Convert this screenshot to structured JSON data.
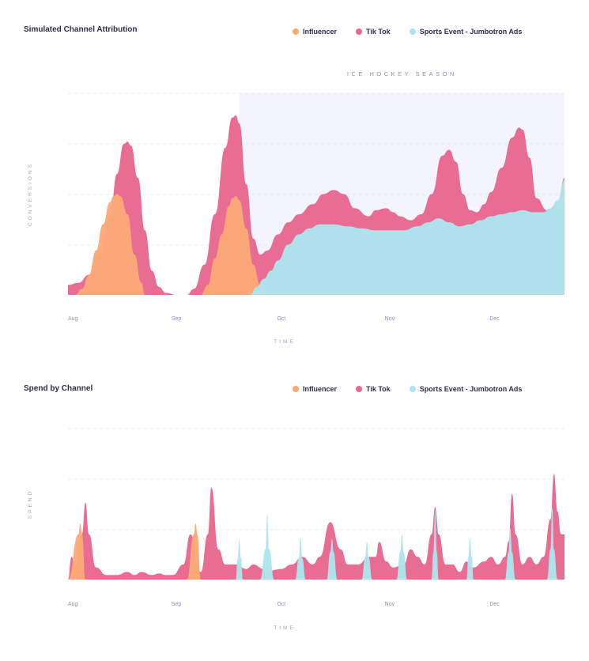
{
  "colors": {
    "influencer": "#fba976",
    "tiktok": "#e8688f",
    "jumbotron": "#ace5ef",
    "season_band": "#f3f4fd",
    "grid": "#e4e6f0"
  },
  "legend": [
    {
      "key": "influencer",
      "label": "Influencer"
    },
    {
      "key": "tiktok",
      "label": "Tik Tok"
    },
    {
      "key": "jumbotron",
      "label": "Sports Event - Jumbotron Ads"
    }
  ],
  "chart_data": [
    {
      "id": "attribution",
      "type": "area",
      "title": "Simulated Channel Attribution",
      "xlabel": "TIME",
      "ylabel": "CONVERSIONS",
      "x_ticks": [
        {
          "label": "Aug",
          "day": 0
        },
        {
          "label": "Sep",
          "day": 31
        },
        {
          "label": "Oct",
          "day": 61
        },
        {
          "label": "Nov",
          "day": 92
        },
        {
          "label": "Dec",
          "day": 122
        }
      ],
      "x_range_days": [
        0,
        142
      ],
      "ylim": [
        0,
        100
      ],
      "grid": true,
      "legend_position": "top-right",
      "annotation": {
        "label": "ICE HOCKEY SEASON",
        "from_day": 49,
        "to_day": 142
      },
      "series": [
        {
          "key": "tiktok",
          "name": "Tik Tok",
          "points": [
            [
              0,
              5
            ],
            [
              3,
              6
            ],
            [
              6,
              10
            ],
            [
              9,
              20
            ],
            [
              12,
              38
            ],
            [
              14,
              60
            ],
            [
              16,
              75
            ],
            [
              17,
              76
            ],
            [
              18,
              74
            ],
            [
              20,
              58
            ],
            [
              22,
              32
            ],
            [
              24,
              12
            ],
            [
              26,
              4
            ],
            [
              28,
              1
            ],
            [
              31,
              0
            ],
            [
              34,
              0
            ],
            [
              36,
              3
            ],
            [
              39,
              15
            ],
            [
              42,
              40
            ],
            [
              45,
              73
            ],
            [
              47,
              88
            ],
            [
              48,
              89
            ],
            [
              49,
              85
            ],
            [
              51,
              55
            ],
            [
              53,
              28
            ],
            [
              55,
              20
            ],
            [
              57,
              22
            ],
            [
              60,
              30
            ],
            [
              63,
              36
            ],
            [
              66,
              40
            ],
            [
              70,
              45
            ],
            [
              73,
              50
            ],
            [
              76,
              52
            ],
            [
              79,
              50
            ],
            [
              82,
              43
            ],
            [
              86,
              39
            ],
            [
              88,
              42
            ],
            [
              91,
              43
            ],
            [
              93,
              41
            ],
            [
              95,
              39
            ],
            [
              98,
              37
            ],
            [
              101,
              40
            ],
            [
              104,
              50
            ],
            [
              107,
              69
            ],
            [
              109,
              72
            ],
            [
              111,
              66
            ],
            [
              113,
              50
            ],
            [
              115,
              42
            ],
            [
              117,
              41
            ],
            [
              119,
              45
            ],
            [
              121,
              51
            ],
            [
              124,
              63
            ],
            [
              127,
              78
            ],
            [
              129,
              83
            ],
            [
              130,
              82
            ],
            [
              132,
              68
            ],
            [
              134,
              48
            ],
            [
              137,
              42
            ],
            [
              140,
              45
            ],
            [
              142,
              58
            ]
          ]
        },
        {
          "key": "influencer",
          "name": "Influencer",
          "points": [
            [
              2,
              0
            ],
            [
              4,
              3
            ],
            [
              6,
              10
            ],
            [
              8,
              22
            ],
            [
              10,
              35
            ],
            [
              12,
              46
            ],
            [
              13,
              49
            ],
            [
              14,
              50
            ],
            [
              15,
              49
            ],
            [
              17,
              40
            ],
            [
              19,
              20
            ],
            [
              21,
              6
            ],
            [
              22,
              0
            ],
            [
              38,
              0
            ],
            [
              40,
              5
            ],
            [
              42,
              18
            ],
            [
              44,
              30
            ],
            [
              46,
              44
            ],
            [
              47,
              48
            ],
            [
              48,
              49
            ],
            [
              49,
              47
            ],
            [
              51,
              33
            ],
            [
              53,
              15
            ],
            [
              55,
              5
            ],
            [
              57,
              0
            ]
          ]
        },
        {
          "key": "jumbotron",
          "name": "Sports Event - Jumbotron Ads",
          "points": [
            [
              52,
              0
            ],
            [
              54,
              4
            ],
            [
              56,
              8
            ],
            [
              58,
              12
            ],
            [
              60,
              17
            ],
            [
              63,
              25
            ],
            [
              66,
              30
            ],
            [
              69,
              33
            ],
            [
              72,
              35
            ],
            [
              76,
              35
            ],
            [
              80,
              34
            ],
            [
              84,
              33
            ],
            [
              88,
              32
            ],
            [
              92,
              32
            ],
            [
              96,
              32
            ],
            [
              100,
              34
            ],
            [
              103,
              36
            ],
            [
              106,
              38
            ],
            [
              109,
              36
            ],
            [
              112,
              34
            ],
            [
              115,
              35
            ],
            [
              118,
              37
            ],
            [
              121,
              39
            ],
            [
              124,
              40
            ],
            [
              127,
              41
            ],
            [
              130,
              42
            ],
            [
              133,
              41
            ],
            [
              136,
              41
            ],
            [
              138,
              43
            ],
            [
              140,
              47
            ],
            [
              142,
              57
            ]
          ]
        }
      ]
    },
    {
      "id": "spend",
      "type": "area",
      "title": "Spend by Channel",
      "xlabel": "TIME",
      "ylabel": "SPEND",
      "x_ticks": [
        {
          "label": "Aug",
          "day": 0
        },
        {
          "label": "Sep",
          "day": 31
        },
        {
          "label": "Oct",
          "day": 61
        },
        {
          "label": "Nov",
          "day": 92
        },
        {
          "label": "Dec",
          "day": 122
        }
      ],
      "x_range_days": [
        0,
        142
      ],
      "ylim": [
        0,
        100
      ],
      "grid": true,
      "legend_position": "top-right",
      "series": [
        {
          "key": "tiktok",
          "name": "Tik Tok",
          "points": [
            [
              0,
              0
            ],
            [
              1,
              15
            ],
            [
              2,
              10
            ],
            [
              4,
              30
            ],
            [
              5,
              51
            ],
            [
              6,
              30
            ],
            [
              8,
              8
            ],
            [
              11,
              3
            ],
            [
              14,
              3
            ],
            [
              17,
              5
            ],
            [
              19,
              3
            ],
            [
              21,
              5
            ],
            [
              24,
              3
            ],
            [
              26,
              4
            ],
            [
              28,
              3
            ],
            [
              30,
              3
            ],
            [
              33,
              10
            ],
            [
              35,
              30
            ],
            [
              38,
              5
            ],
            [
              40,
              30
            ],
            [
              41,
              61
            ],
            [
              43,
              20
            ],
            [
              45,
              10
            ],
            [
              48,
              10
            ],
            [
              51,
              7
            ],
            [
              53,
              10
            ],
            [
              56,
              7
            ],
            [
              58,
              6
            ],
            [
              61,
              7
            ],
            [
              64,
              10
            ],
            [
              67,
              15
            ],
            [
              70,
              10
            ],
            [
              72,
              15
            ],
            [
              75,
              38
            ],
            [
              78,
              20
            ],
            [
              80,
              10
            ],
            [
              83,
              10
            ],
            [
              86,
              15
            ],
            [
              88,
              15
            ],
            [
              89,
              25
            ],
            [
              91,
              12
            ],
            [
              93,
              8
            ],
            [
              96,
              10
            ],
            [
              98,
              20
            ],
            [
              100,
              15
            ],
            [
              102,
              10
            ],
            [
              104,
              30
            ],
            [
              105,
              48
            ],
            [
              106,
              30
            ],
            [
              108,
              10
            ],
            [
              110,
              10
            ],
            [
              112,
              5
            ],
            [
              114,
              12
            ],
            [
              116,
              8
            ],
            [
              119,
              12
            ],
            [
              121,
              15
            ],
            [
              123,
              10
            ],
            [
              125,
              15
            ],
            [
              126,
              25
            ],
            [
              127,
              57
            ],
            [
              128,
              30
            ],
            [
              130,
              10
            ],
            [
              132,
              15
            ],
            [
              134,
              10
            ],
            [
              136,
              15
            ],
            [
              138,
              40
            ],
            [
              139,
              70
            ],
            [
              140,
              45
            ],
            [
              141,
              30
            ],
            [
              142,
              30
            ]
          ]
        },
        {
          "key": "influencer",
          "name": "Influencer",
          "points": [
            [
              0,
              0
            ],
            [
              3,
              30
            ],
            [
              3.5,
              37
            ],
            [
              4,
              30
            ],
            [
              5,
              0
            ],
            [
              34,
              0
            ],
            [
              36,
              30
            ],
            [
              36.5,
              37
            ],
            [
              37,
              30
            ],
            [
              38,
              0
            ]
          ]
        },
        {
          "key": "jumbotron",
          "name": "Sports Event - Jumbotron Ads",
          "points": [
            [
              48,
              0
            ],
            [
              48.5,
              14
            ],
            [
              49,
              26
            ],
            [
              49.5,
              14
            ],
            [
              50,
              0
            ],
            [
              55,
              0
            ],
            [
              56.5,
              20
            ],
            [
              57,
              43
            ],
            [
              57.5,
              20
            ],
            [
              59,
              0
            ],
            [
              65,
              0
            ],
            [
              66,
              14
            ],
            [
              66.5,
              28
            ],
            [
              67,
              14
            ],
            [
              68,
              0
            ],
            [
              74,
              0
            ],
            [
              75,
              18
            ],
            [
              75.5,
              27
            ],
            [
              76,
              18
            ],
            [
              77,
              0
            ],
            [
              84,
              0
            ],
            [
              85,
              15
            ],
            [
              85.5,
              25
            ],
            [
              86,
              15
            ],
            [
              87,
              0
            ],
            [
              94,
              0
            ],
            [
              95,
              18
            ],
            [
              95.5,
              30
            ],
            [
              96,
              18
            ],
            [
              97,
              0
            ],
            [
              104,
              0
            ],
            [
              104.5,
              18
            ],
            [
              105,
              46
            ],
            [
              105.5,
              18
            ],
            [
              106,
              0
            ],
            [
              114,
              0
            ],
            [
              114.5,
              15
            ],
            [
              115,
              27
            ],
            [
              115.5,
              15
            ],
            [
              116,
              0
            ],
            [
              125,
              0
            ],
            [
              126,
              18
            ],
            [
              126.5,
              34
            ],
            [
              127,
              18
            ],
            [
              128,
              0
            ],
            [
              137,
              0
            ],
            [
              138,
              20
            ],
            [
              138.5,
              48
            ],
            [
              139,
              20
            ],
            [
              140,
              0
            ]
          ]
        }
      ]
    }
  ]
}
